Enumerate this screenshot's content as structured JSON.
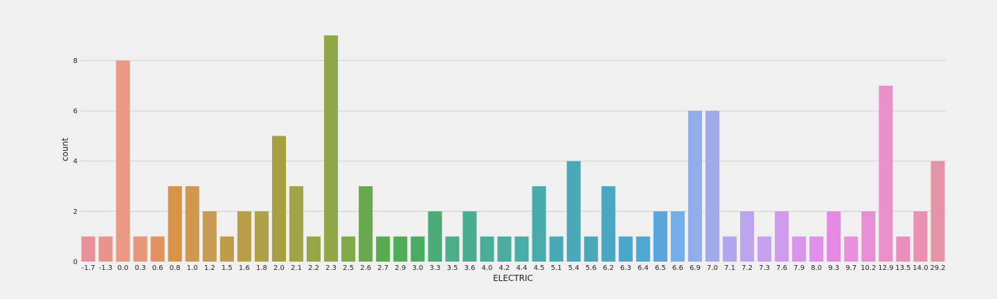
{
  "chart_data": {
    "type": "bar",
    "xlabel": "ELECTRIC",
    "ylabel": "count",
    "ylim": [
      0,
      9.5
    ],
    "yticks": [
      "0",
      "2",
      "4",
      "6",
      "8"
    ],
    "grid": true,
    "categories": [
      "-1.7",
      "-1.3",
      "0.0",
      "0.3",
      "0.6",
      "0.8",
      "1.0",
      "1.2",
      "1.5",
      "1.6",
      "1.8",
      "2.0",
      "2.1",
      "2.2",
      "2.3",
      "2.5",
      "2.6",
      "2.7",
      "2.9",
      "3.0",
      "3.3",
      "3.5",
      "3.6",
      "4.0",
      "4.2",
      "4.4",
      "4.5",
      "5.1",
      "5.4",
      "5.6",
      "6.2",
      "6.3",
      "6.4",
      "6.5",
      "6.6",
      "6.9",
      "7.0",
      "7.1",
      "7.2",
      "7.3",
      "7.6",
      "7.9",
      "8.0",
      "9.3",
      "9.7",
      "10.2",
      "12.9",
      "13.5",
      "14.0",
      "29.2"
    ],
    "values": [
      1,
      1,
      8,
      1,
      1,
      3,
      3,
      2,
      1,
      2,
      2,
      5,
      3,
      1,
      9,
      1,
      3,
      1,
      1,
      1,
      2,
      1,
      2,
      1,
      1,
      1,
      3,
      1,
      4,
      1,
      3,
      1,
      1,
      2,
      2,
      6,
      6,
      1,
      2,
      1,
      2,
      1,
      1,
      2,
      1,
      2,
      7,
      1,
      2,
      4
    ]
  }
}
